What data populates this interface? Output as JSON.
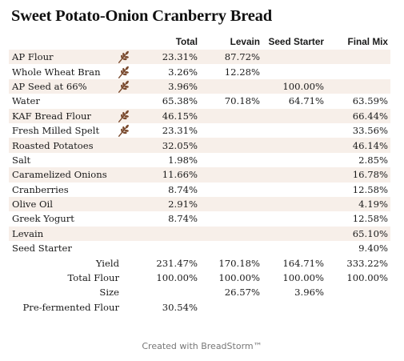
{
  "title": "Sweet Potato-Onion Cranberry Bread",
  "columns": [
    "Total",
    "Levain",
    "Seed Starter",
    "Final Mix"
  ],
  "ingredients": [
    {
      "name": "AP Flour",
      "flour": true,
      "values": [
        "23.31%",
        "87.72%",
        "",
        ""
      ]
    },
    {
      "name": "Whole Wheat Bran",
      "flour": true,
      "values": [
        "3.26%",
        "12.28%",
        "",
        ""
      ]
    },
    {
      "name": "AP Seed at 66%",
      "flour": true,
      "values": [
        "3.96%",
        "",
        "100.00%",
        ""
      ]
    },
    {
      "name": "Water",
      "flour": false,
      "values": [
        "65.38%",
        "70.18%",
        "64.71%",
        "63.59%"
      ]
    },
    {
      "name": "KAF Bread Flour",
      "flour": true,
      "values": [
        "46.15%",
        "",
        "",
        "66.44%"
      ]
    },
    {
      "name": "Fresh Milled Spelt",
      "flour": true,
      "values": [
        "23.31%",
        "",
        "",
        "33.56%"
      ]
    },
    {
      "name": "Roasted Potatoes",
      "flour": false,
      "values": [
        "32.05%",
        "",
        "",
        "46.14%"
      ]
    },
    {
      "name": "Salt",
      "flour": false,
      "values": [
        "1.98%",
        "",
        "",
        "2.85%"
      ]
    },
    {
      "name": "Caramelized Onions",
      "flour": false,
      "values": [
        "11.66%",
        "",
        "",
        "16.78%"
      ]
    },
    {
      "name": "Cranberries",
      "flour": false,
      "values": [
        "8.74%",
        "",
        "",
        "12.58%"
      ]
    },
    {
      "name": "Olive Oil",
      "flour": false,
      "values": [
        "2.91%",
        "",
        "",
        "4.19%"
      ]
    },
    {
      "name": "Greek Yogurt",
      "flour": false,
      "values": [
        "8.74%",
        "",
        "",
        "12.58%"
      ]
    },
    {
      "name": "Levain",
      "flour": false,
      "values": [
        "",
        "",
        "",
        "65.10%"
      ]
    },
    {
      "name": "Seed Starter",
      "flour": false,
      "values": [
        "",
        "",
        "",
        "9.40%"
      ]
    }
  ],
  "totals": [
    {
      "label": "Yield",
      "values": [
        "231.47%",
        "170.18%",
        "164.71%",
        "333.22%"
      ]
    },
    {
      "label": "Total Flour",
      "values": [
        "100.00%",
        "100.00%",
        "100.00%",
        "100.00%"
      ]
    },
    {
      "label": "Size",
      "values": [
        "",
        "26.57%",
        "3.96%",
        ""
      ]
    },
    {
      "label": "Pre-fermented Flour",
      "values": [
        "30.54%",
        "",
        "",
        ""
      ]
    }
  ],
  "footer": "Created with BreadStorm™",
  "icons": {
    "flour": "wheat-icon"
  },
  "colors": {
    "shade": "#f7efe9",
    "icon": "#7a4a2e"
  }
}
